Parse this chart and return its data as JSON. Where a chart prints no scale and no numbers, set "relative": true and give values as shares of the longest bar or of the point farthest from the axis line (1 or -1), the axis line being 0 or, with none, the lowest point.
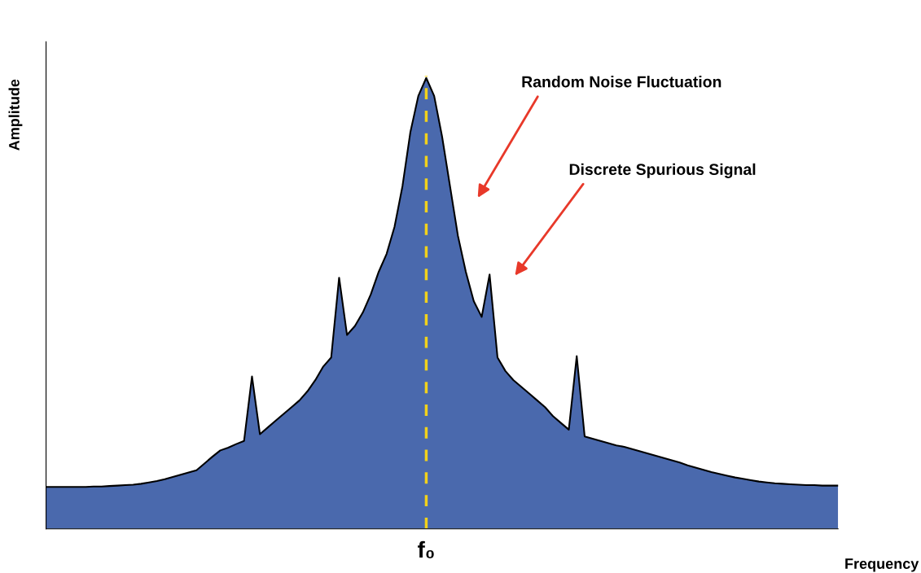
{
  "chart_data": {
    "type": "area",
    "relative": true,
    "xlabel": "Frequency",
    "ylabel": "Amplitude",
    "categories": [
      null,
      null,
      null,
      null,
      null,
      null,
      null,
      null,
      null,
      null,
      null,
      null,
      null,
      null,
      null,
      null,
      null,
      null,
      null,
      null,
      null,
      null,
      null,
      null,
      null,
      null,
      null,
      null,
      null,
      null,
      null,
      null,
      null,
      null,
      null,
      null,
      null,
      null,
      null,
      null,
      null,
      null,
      null,
      null,
      null,
      null,
      null,
      null,
      null,
      null,
      null,
      null,
      null,
      null,
      null,
      null,
      null,
      null,
      null,
      null,
      null,
      null,
      null,
      null,
      null,
      null,
      null,
      null,
      null,
      null,
      null,
      null,
      null,
      null,
      null,
      null,
      null,
      null,
      null,
      null,
      null,
      null,
      null,
      null,
      null,
      null,
      null,
      null,
      null,
      null,
      null,
      null,
      null,
      null,
      null,
      null,
      null,
      null,
      null,
      null,
      null
    ],
    "series": [
      {
        "color": "#4a69ad",
        "values": [
          0.093,
          0.093,
          0.093,
          0.093,
          0.093,
          0.093,
          0.094,
          0.094,
          0.095,
          0.096,
          0.097,
          0.098,
          0.1,
          0.103,
          0.106,
          0.11,
          0.115,
          0.12,
          0.125,
          0.13,
          0.145,
          0.16,
          0.174,
          0.18,
          0.188,
          0.195,
          0.338,
          0.21,
          0.225,
          0.24,
          0.255,
          0.27,
          0.285,
          0.305,
          0.33,
          0.36,
          0.38,
          0.557,
          0.43,
          0.45,
          0.48,
          0.52,
          0.57,
          0.61,
          0.67,
          0.76,
          0.88,
          0.96,
          1,
          0.96,
          0.87,
          0.76,
          0.65,
          0.57,
          0.505,
          0.47,
          0.564,
          0.38,
          0.35,
          0.33,
          0.315,
          0.3,
          0.285,
          0.27,
          0.25,
          0.235,
          0.22,
          0.383,
          0.205,
          0.2,
          0.195,
          0.19,
          0.185,
          0.182,
          0.177,
          0.172,
          0.167,
          0.162,
          0.157,
          0.152,
          0.147,
          0.141,
          0.136,
          0.131,
          0.126,
          0.122,
          0.118,
          0.114,
          0.111,
          0.108,
          0.105,
          0.103,
          0.101,
          0.1,
          0.099,
          0.098,
          0.097,
          0.097,
          0.096,
          0.096,
          0.096
        ]
      }
    ],
    "annotations": [
      "f₀",
      "Random Noise Fluctuation",
      "Discrete Spurious Signal"
    ]
  }
}
